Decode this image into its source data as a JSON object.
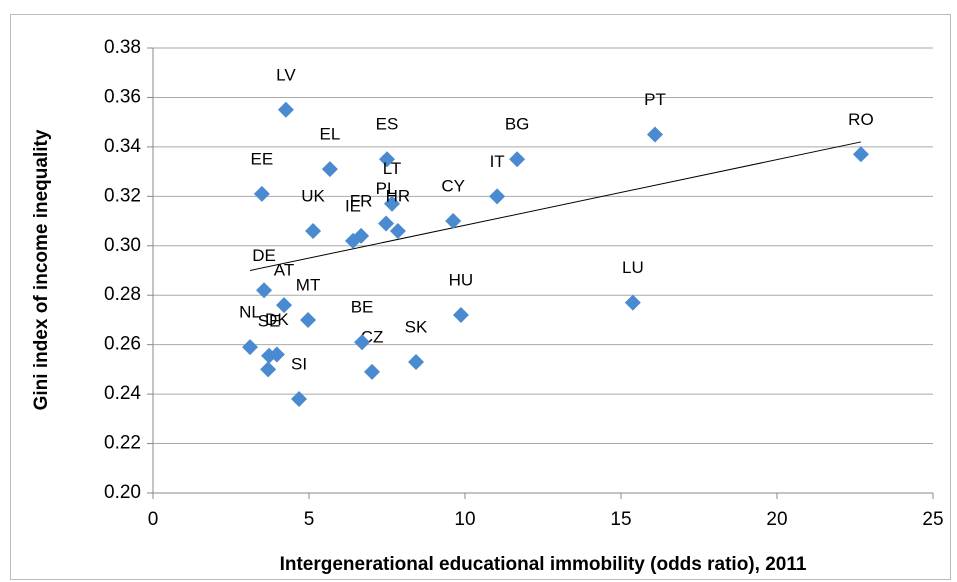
{
  "chart_data": {
    "type": "scatter",
    "x_label": "Intergenerational educational immobility (odds ratio), 2011",
    "y_label": "Gini index of income inequality",
    "color": "#4a8ad0",
    "labels": [
      "LV",
      "EE",
      "EL",
      "ES",
      "LT",
      "PL",
      "FR",
      "IE",
      "UK",
      "HR",
      "CY",
      "IT",
      "BG",
      "PT",
      "RO",
      "LU",
      "HU",
      "SK",
      "CZ",
      "BE",
      "MT",
      "AT",
      "DE",
      "SE",
      "DK",
      "NL",
      null,
      "SI"
    ],
    "x": [
      4.26,
      3.49,
      5.67,
      7.5,
      7.66,
      7.47,
      6.67,
      6.41,
      5.13,
      7.85,
      9.62,
      11.03,
      11.67,
      16.09,
      22.69,
      15.38,
      9.87,
      8.43,
      7.02,
      6.7,
      4.97,
      4.2,
      3.56,
      3.72,
      3.97,
      3.11,
      3.69,
      4.68
    ],
    "y": [
      0.355,
      0.321,
      0.331,
      0.335,
      0.317,
      0.309,
      0.304,
      0.302,
      0.306,
      0.306,
      0.31,
      0.32,
      0.335,
      0.345,
      0.337,
      0.277,
      0.272,
      0.253,
      0.249,
      0.261,
      0.27,
      0.276,
      0.282,
      0.2555,
      0.256,
      0.259,
      0.25,
      0.238
    ],
    "trendline": {
      "x": [
        3.11,
        22.69
      ],
      "y": [
        0.29,
        0.342
      ]
    },
    "xlim": [
      0,
      25
    ],
    "xticks": [
      0,
      5,
      10,
      15,
      20,
      25
    ],
    "ylim": [
      0.2,
      0.38
    ],
    "yticks": [
      {
        "value": 0.2,
        "label": "0.20"
      },
      {
        "value": 0.22,
        "label": "0.22"
      },
      {
        "value": 0.24,
        "label": "0.24"
      },
      {
        "value": 0.26,
        "label": "0.26"
      },
      {
        "value": 0.28,
        "label": "0.28"
      },
      {
        "value": 0.3,
        "label": "0.30"
      },
      {
        "value": 0.32,
        "label": "0.32"
      },
      {
        "value": 0.34,
        "label": "0.34"
      },
      {
        "value": 0.36,
        "label": "0.36"
      },
      {
        "value": 0.38,
        "label": "0.38"
      }
    ],
    "grid": true
  }
}
